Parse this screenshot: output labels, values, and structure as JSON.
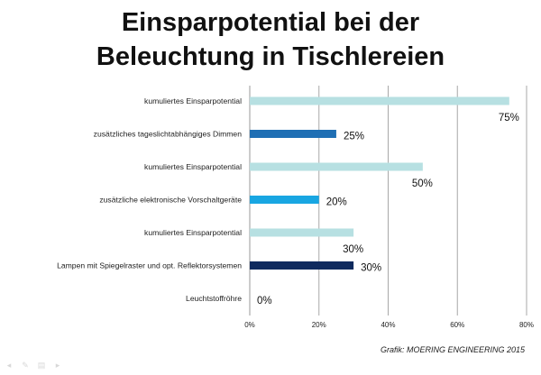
{
  "title_line1": "Einsparpotential bei der",
  "title_line2": "Beleuchtung in Tischlereien",
  "credit": "Grafik: MOERING ENGINEERING 2015",
  "chart_data": {
    "type": "bar",
    "orientation": "horizontal",
    "title": "Einsparpotential bei der Beleuchtung in Tischlereien",
    "categories": [
      "kumuliertes Einsparpotential",
      "zusätzliches tageslichtabhängiges Dimmen",
      "kumuliertes Einsparpotential",
      "zusätzliche elektronische Vorschaltgeräte",
      "kumuliertes Einsparpotential",
      "Lampen mit Spiegelraster und opt. Reflektorsystemen",
      "Leuchtstoffröhre"
    ],
    "values": [
      75,
      25,
      50,
      20,
      30,
      30,
      0
    ],
    "value_labels": [
      "75%",
      "25%",
      "50%",
      "20%",
      "30%",
      "30%",
      "0%"
    ],
    "colors": [
      "#b7e0e2",
      "#1f6fb4",
      "#b7e0e2",
      "#18a6e2",
      "#b7e0e2",
      "#0f2a5e",
      "#b7e0e2"
    ],
    "xlim": [
      0,
      80
    ],
    "xticks": [
      0,
      20,
      40,
      60,
      80
    ],
    "xtick_labels": [
      "0%",
      "20%",
      "40%",
      "60%",
      "80%"
    ],
    "grid": true,
    "legend": "none"
  }
}
